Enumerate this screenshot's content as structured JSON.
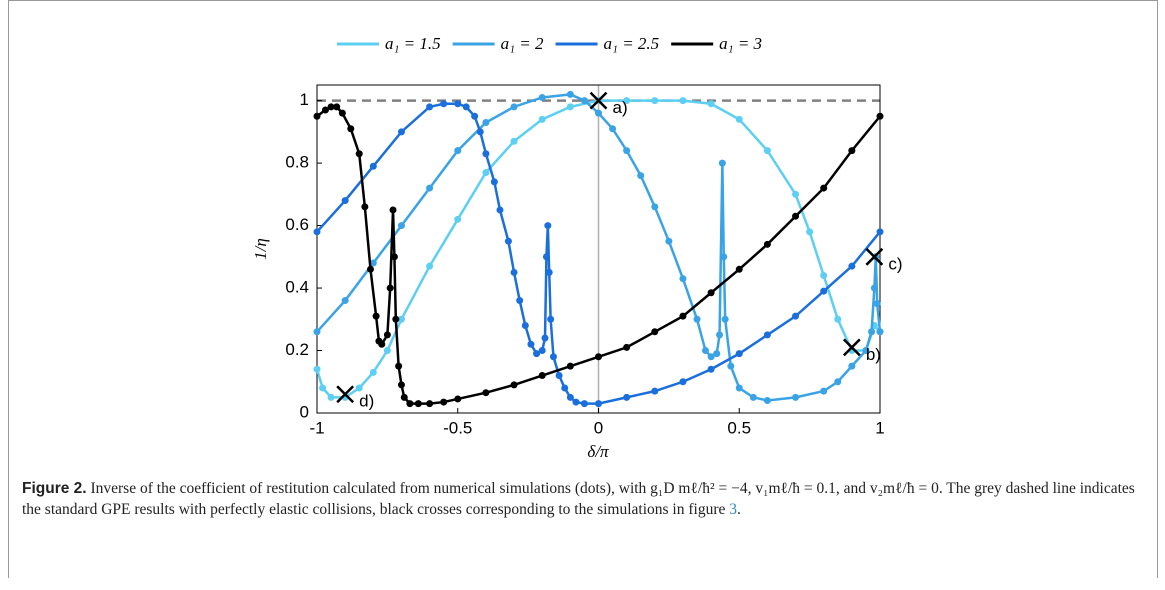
{
  "chart_data": {
    "type": "line",
    "xlabel": "δ/π",
    "ylabel": "1/η",
    "xlim": [
      -1,
      1
    ],
    "ylim": [
      0,
      1.05
    ],
    "xticks": [
      -1,
      -0.5,
      0,
      0.5,
      1
    ],
    "yticks": [
      0,
      0.2,
      0.4,
      0.6,
      0.8,
      1
    ],
    "reference_line": {
      "y": 1,
      "color": "#808080"
    },
    "zero_line": {
      "x": 0,
      "color": "#b0b0b0"
    },
    "legend": "top",
    "series": [
      {
        "name": "a₁ = 1.5",
        "color": "#5ccff2",
        "x": [
          -1,
          -0.98,
          -0.95,
          -0.9,
          -0.85,
          -0.8,
          -0.75,
          -0.7,
          -0.6,
          -0.5,
          -0.4,
          -0.3,
          -0.2,
          -0.1,
          0,
          0.1,
          0.2,
          0.3,
          0.4,
          0.5,
          0.6,
          0.7,
          0.75,
          0.8,
          0.85,
          0.9,
          0.95,
          0.98,
          1
        ],
        "values": [
          0.14,
          0.08,
          0.05,
          0.05,
          0.08,
          0.13,
          0.2,
          0.3,
          0.47,
          0.62,
          0.77,
          0.87,
          0.94,
          0.98,
          1.0,
          1.0,
          1.0,
          1.0,
          0.99,
          0.94,
          0.84,
          0.7,
          0.58,
          0.44,
          0.3,
          0.2,
          0.2,
          0.28,
          0.26
        ]
      },
      {
        "name": "a₁ = 2",
        "color": "#3aa3e6",
        "x": [
          -1,
          -0.9,
          -0.8,
          -0.7,
          -0.6,
          -0.5,
          -0.4,
          -0.3,
          -0.2,
          -0.1,
          -0.05,
          0,
          0.05,
          0.1,
          0.15,
          0.2,
          0.25,
          0.3,
          0.35,
          0.38,
          0.4,
          0.42,
          0.43,
          0.44,
          0.445,
          0.45,
          0.47,
          0.5,
          0.55,
          0.6,
          0.7,
          0.8,
          0.85,
          0.9,
          0.95,
          0.97,
          0.98,
          0.985,
          0.99,
          1
        ],
        "values": [
          0.26,
          0.36,
          0.48,
          0.6,
          0.72,
          0.84,
          0.93,
          0.98,
          1.01,
          1.02,
          1.0,
          0.96,
          0.91,
          0.84,
          0.76,
          0.66,
          0.55,
          0.43,
          0.3,
          0.2,
          0.18,
          0.19,
          0.25,
          0.8,
          0.5,
          0.3,
          0.15,
          0.08,
          0.05,
          0.04,
          0.05,
          0.07,
          0.1,
          0.15,
          0.2,
          0.26,
          0.4,
          0.5,
          0.35,
          0.26
        ]
      },
      {
        "name": "a₁ = 2.5",
        "color": "#1a6fdc",
        "x": [
          -1,
          -0.9,
          -0.8,
          -0.7,
          -0.6,
          -0.55,
          -0.5,
          -0.47,
          -0.44,
          -0.42,
          -0.4,
          -0.37,
          -0.35,
          -0.32,
          -0.3,
          -0.28,
          -0.26,
          -0.24,
          -0.22,
          -0.2,
          -0.19,
          -0.185,
          -0.18,
          -0.175,
          -0.17,
          -0.16,
          -0.14,
          -0.12,
          -0.1,
          -0.08,
          -0.05,
          0,
          0.1,
          0.2,
          0.3,
          0.4,
          0.5,
          0.6,
          0.7,
          0.8,
          0.9,
          1
        ],
        "values": [
          0.58,
          0.68,
          0.79,
          0.9,
          0.98,
          0.99,
          0.99,
          0.98,
          0.95,
          0.9,
          0.83,
          0.74,
          0.65,
          0.55,
          0.45,
          0.36,
          0.28,
          0.22,
          0.19,
          0.2,
          0.24,
          0.5,
          0.6,
          0.45,
          0.3,
          0.18,
          0.12,
          0.08,
          0.05,
          0.035,
          0.03,
          0.03,
          0.05,
          0.07,
          0.1,
          0.14,
          0.19,
          0.25,
          0.31,
          0.39,
          0.47,
          0.58
        ]
      },
      {
        "name": "a₁ = 3",
        "color": "#000000",
        "x": [
          -1,
          -0.97,
          -0.95,
          -0.93,
          -0.91,
          -0.88,
          -0.85,
          -0.83,
          -0.81,
          -0.79,
          -0.78,
          -0.77,
          -0.75,
          -0.74,
          -0.73,
          -0.725,
          -0.72,
          -0.71,
          -0.7,
          -0.69,
          -0.67,
          -0.64,
          -0.6,
          -0.55,
          -0.5,
          -0.4,
          -0.3,
          -0.2,
          -0.1,
          0,
          0.1,
          0.2,
          0.3,
          0.4,
          0.5,
          0.6,
          0.7,
          0.8,
          0.9,
          1
        ],
        "values": [
          0.95,
          0.97,
          0.98,
          0.98,
          0.96,
          0.91,
          0.83,
          0.66,
          0.46,
          0.31,
          0.23,
          0.22,
          0.25,
          0.4,
          0.65,
          0.5,
          0.3,
          0.15,
          0.09,
          0.05,
          0.03,
          0.03,
          0.03,
          0.035,
          0.045,
          0.065,
          0.09,
          0.12,
          0.15,
          0.18,
          0.21,
          0.26,
          0.31,
          0.385,
          0.46,
          0.54,
          0.63,
          0.72,
          0.84,
          0.95
        ]
      }
    ],
    "markers": [
      {
        "label": "a)",
        "x": 0,
        "y": 1.0
      },
      {
        "label": "b)",
        "x": 0.9,
        "y": 0.21
      },
      {
        "label": "c)",
        "x": 0.98,
        "y": 0.5
      },
      {
        "label": "d)",
        "x": -0.9,
        "y": 0.06
      }
    ]
  },
  "caption": {
    "label": "Figure 2.",
    "text": " Inverse of the coefficient of restitution calculated from numerical simulations (dots), with g₁D mℓ/ħ² = −4, v₁mℓ/ħ = 0.1, and v₂mℓ/ħ = 0. The grey dashed line indicates the standard GPE results with perfectly elastic collisions, black crosses corresponding to the simulations in figure ",
    "ref": "3",
    "end": "."
  }
}
